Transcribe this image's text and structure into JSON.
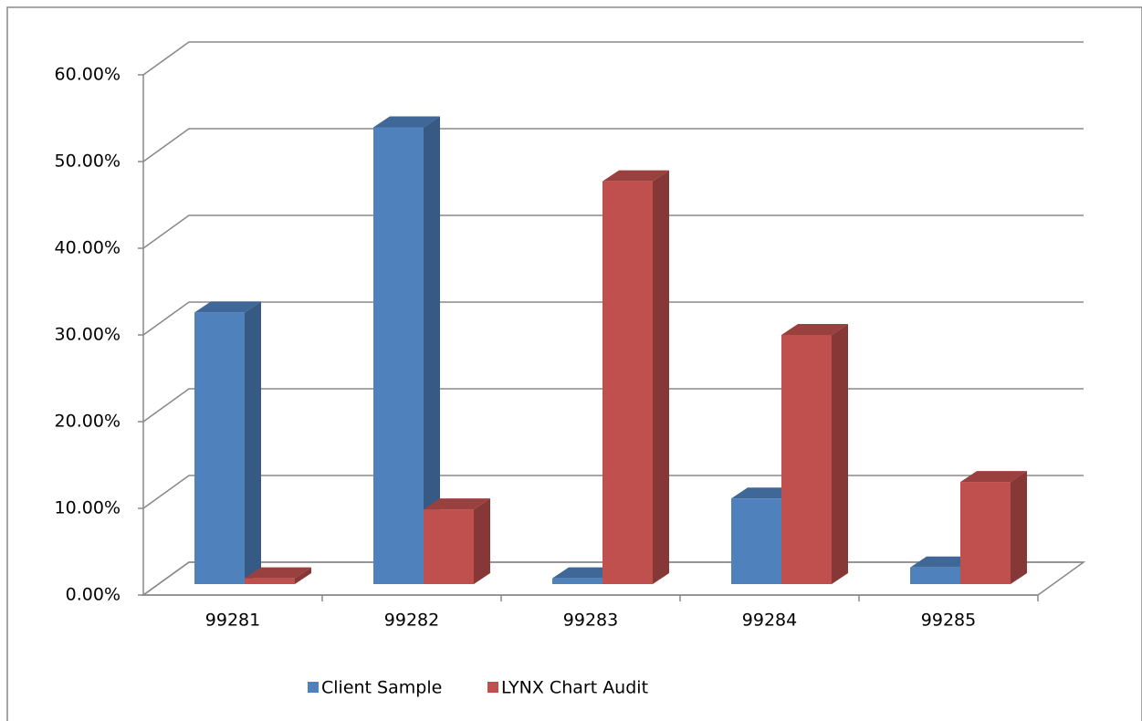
{
  "chart_data": {
    "type": "bar3d",
    "categories": [
      "99281",
      "99282",
      "99283",
      "99284",
      "99285"
    ],
    "series": [
      {
        "name": "Client Sample",
        "color": "#4f81bd",
        "values": [
          32.7,
          55,
          0.7,
          10.3,
          2
        ]
      },
      {
        "name": "LYNX Chart Audit",
        "color": "#c0504d",
        "values": [
          0.7,
          9,
          48.5,
          30,
          12.3
        ]
      }
    ],
    "ylim": [
      0,
      60
    ],
    "yticks": [
      {
        "value": 0,
        "label": "0.00%"
      },
      {
        "value": 10,
        "label": "10.00%"
      },
      {
        "value": 20,
        "label": "20.00%"
      },
      {
        "value": 30,
        "label": "30.00%"
      },
      {
        "value": 40,
        "label": "40.00%"
      },
      {
        "value": 50,
        "label": "50.00%"
      },
      {
        "value": 60,
        "label": "60.00%"
      }
    ],
    "grid": true,
    "legend": "bottom"
  }
}
